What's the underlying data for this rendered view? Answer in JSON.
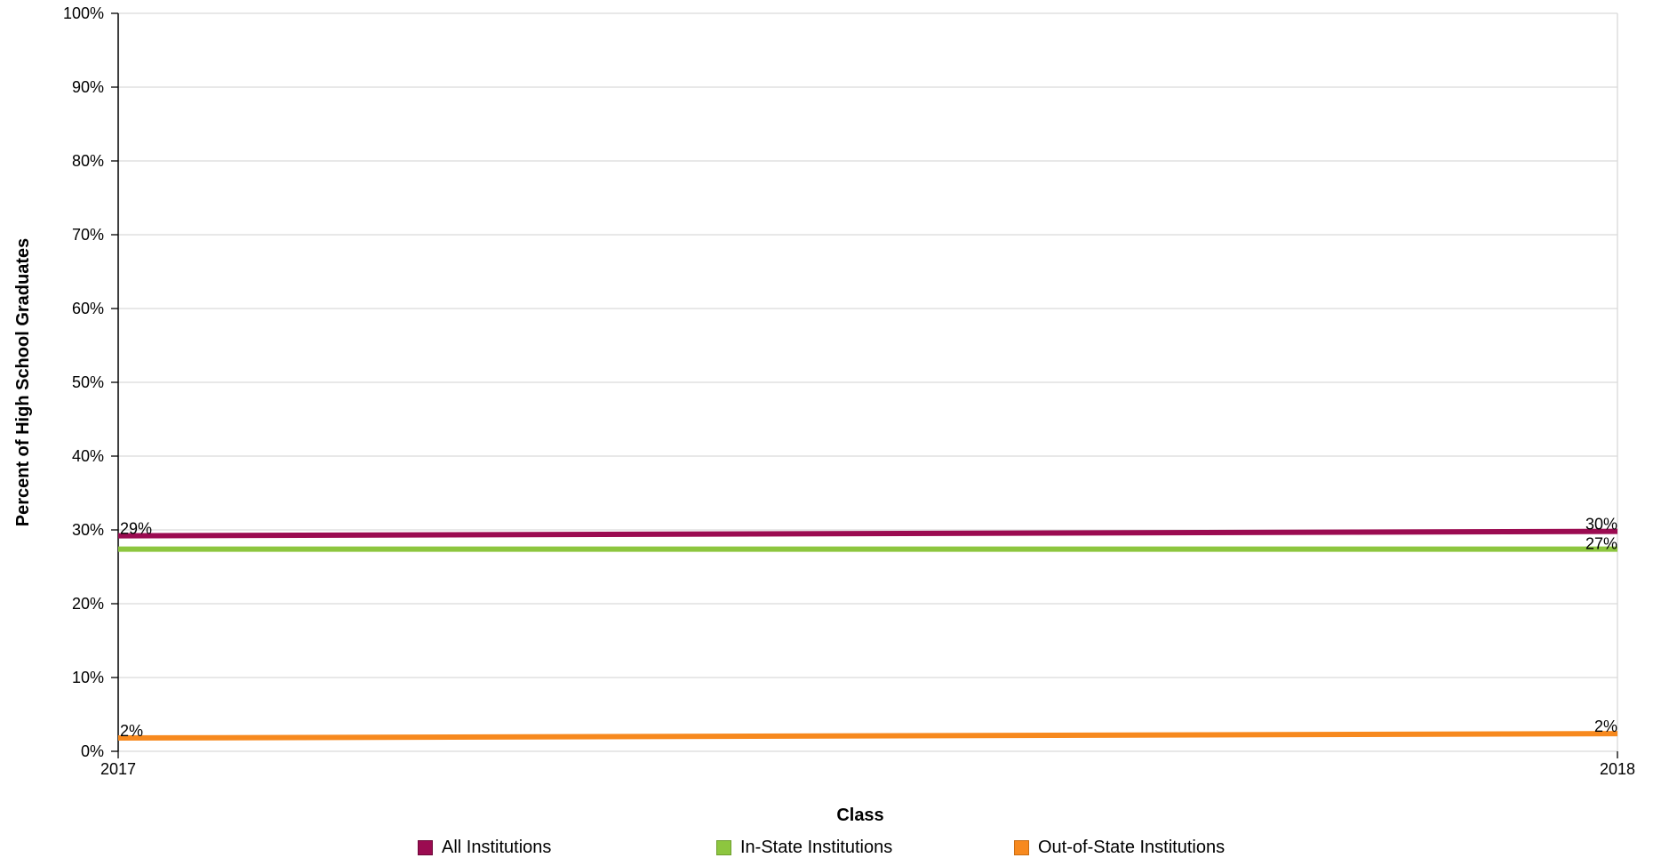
{
  "chart_data": {
    "type": "line",
    "xlabel": "Class",
    "ylabel": "Percent of High School Graduates",
    "x": [
      "2017",
      "2018"
    ],
    "ylim": [
      0,
      100
    ],
    "yticks": [
      "0%",
      "10%",
      "20%",
      "30%",
      "40%",
      "50%",
      "60%",
      "70%",
      "80%",
      "90%",
      "100%"
    ],
    "grid": true,
    "legend_position": "bottom",
    "series": [
      {
        "name": "All Institutions",
        "color": "#9b0b51",
        "values": [
          29.2,
          29.8
        ],
        "labels": [
          "29%",
          "30%"
        ]
      },
      {
        "name": "In-State Institutions",
        "color": "#8dc63f",
        "values": [
          27.4,
          27.4
        ],
        "labels": [
          "",
          "27%"
        ]
      },
      {
        "name": "Out-of-State Institutions",
        "color": "#f7891e",
        "values": [
          1.8,
          2.4
        ],
        "labels": [
          "2%",
          "2%"
        ]
      }
    ]
  }
}
